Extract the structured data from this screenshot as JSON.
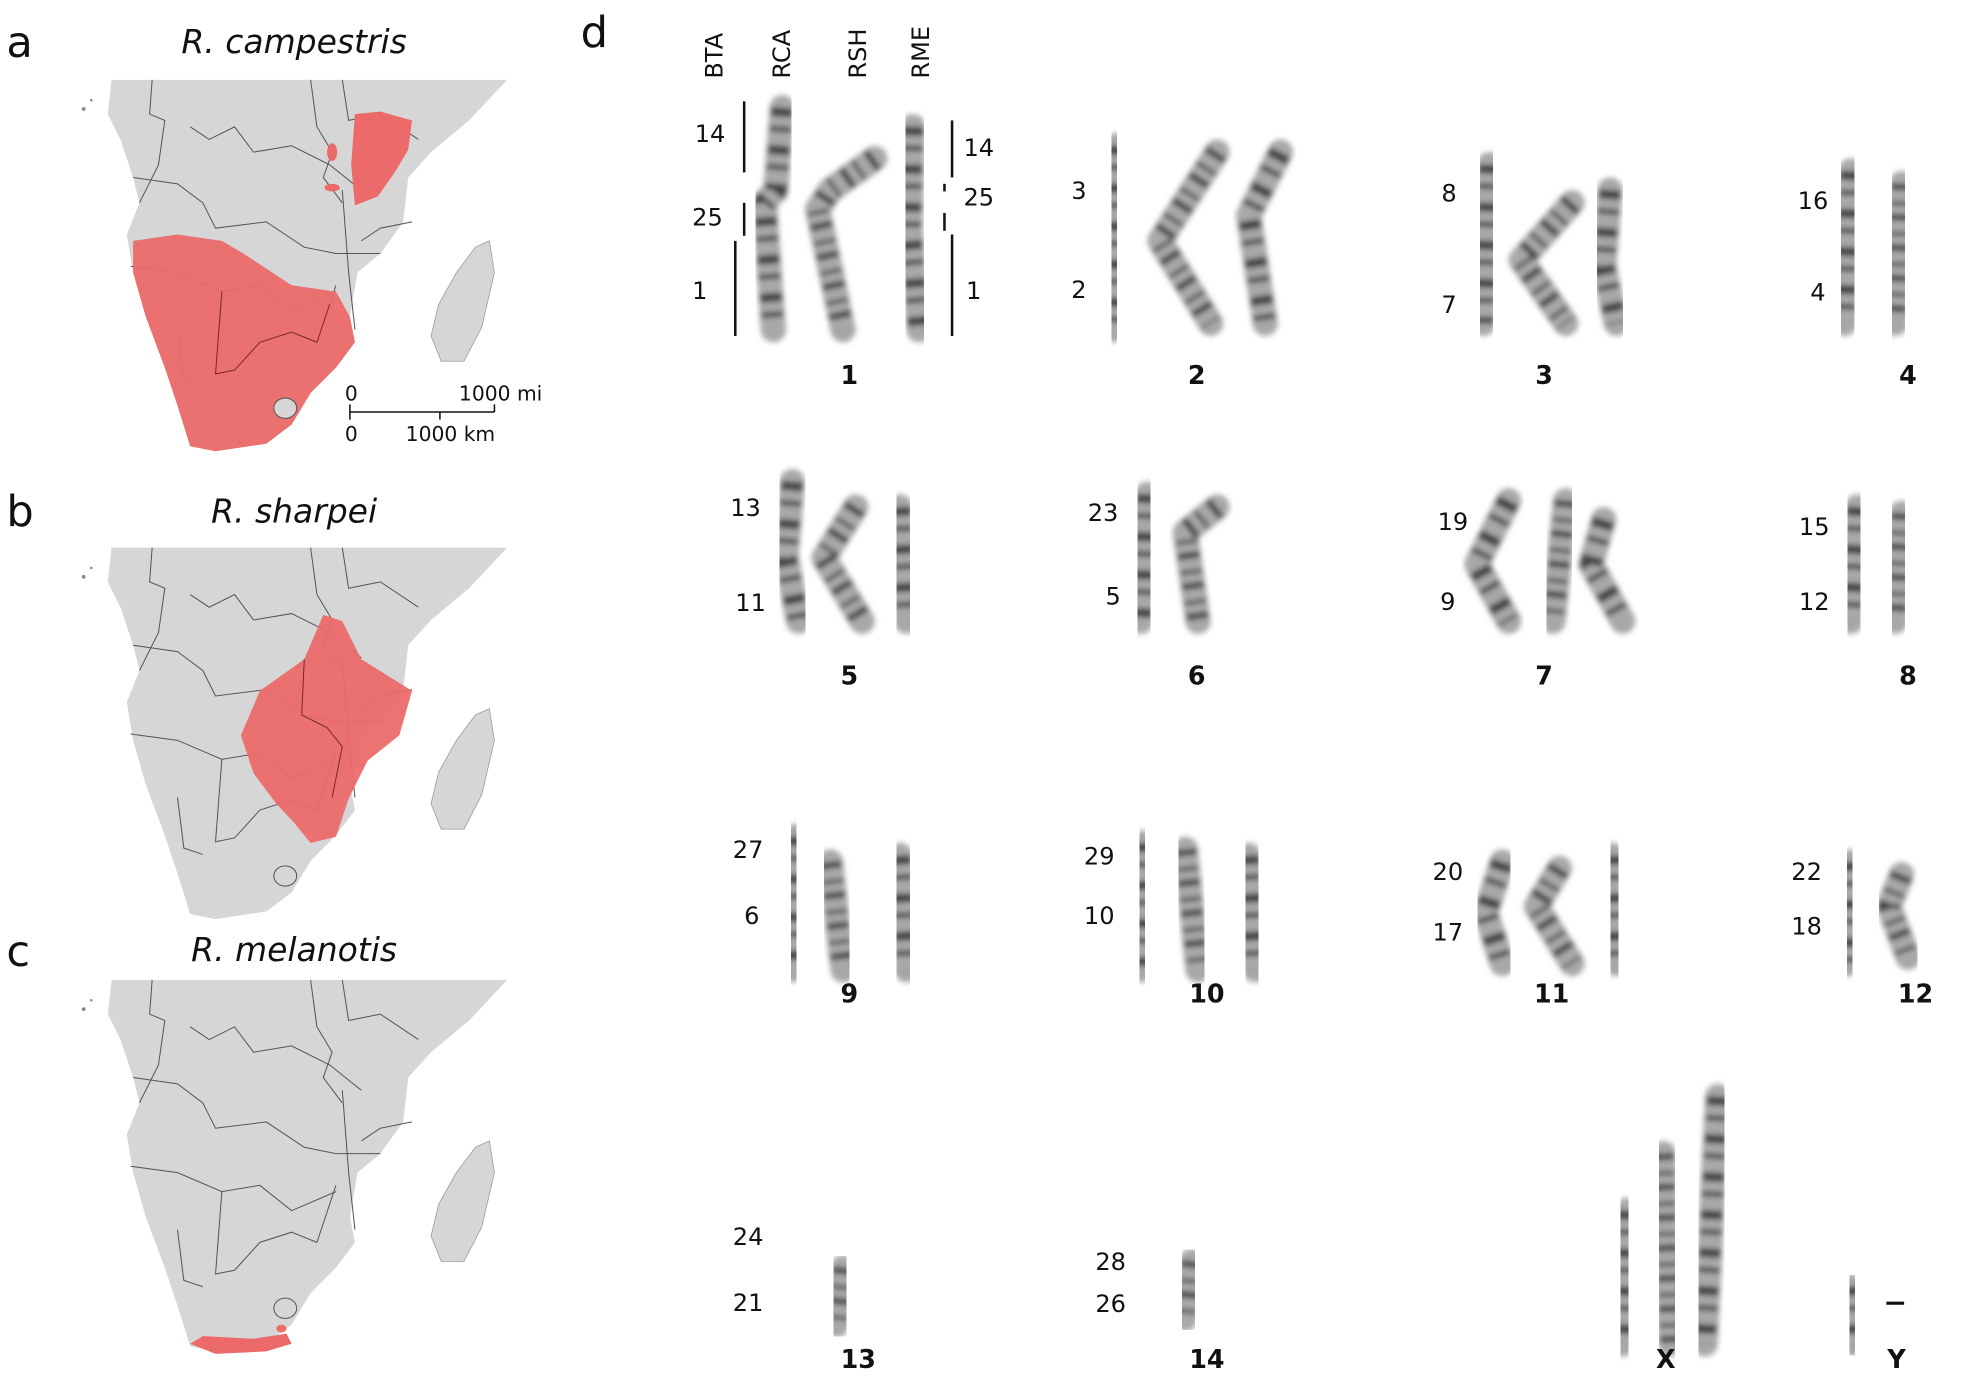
{
  "panels": {
    "a": {
      "letter": "a",
      "species": "R. campestris"
    },
    "b": {
      "letter": "b",
      "species": "R. sharpei"
    },
    "c": {
      "letter": "c",
      "species": "R. melanotis"
    },
    "d": {
      "letter": "d",
      "columns": [
        "BTA",
        "RCA",
        "RSH",
        "RME"
      ]
    }
  },
  "scale_bar": {
    "mi_zero": "0",
    "mi_label": "1000 mi",
    "km_zero": "0",
    "km_label": "1000 km"
  },
  "colors": {
    "land": "#d6d6d6",
    "range": "#ec6a6a",
    "border": "#555555",
    "chromosome": "#222222"
  },
  "karyotype": [
    {
      "chromosome": "1",
      "bta_left": [
        "14",
        "25",
        "1"
      ],
      "bta_right": [
        "14",
        "25",
        "1"
      ]
    },
    {
      "chromosome": "2",
      "bta_left": [
        "3",
        "2"
      ]
    },
    {
      "chromosome": "3",
      "bta_left": [
        "8",
        "7"
      ]
    },
    {
      "chromosome": "4",
      "bta_left": [
        "16",
        "4"
      ]
    },
    {
      "chromosome": "5",
      "bta_left": [
        "13",
        "11"
      ]
    },
    {
      "chromosome": "6",
      "bta_left": [
        "23",
        "5"
      ]
    },
    {
      "chromosome": "7",
      "bta_left": [
        "19",
        "9"
      ]
    },
    {
      "chromosome": "8",
      "bta_left": [
        "15",
        "12"
      ]
    },
    {
      "chromosome": "9",
      "bta_left": [
        "27",
        "6"
      ]
    },
    {
      "chromosome": "10",
      "bta_left": [
        "29",
        "10"
      ]
    },
    {
      "chromosome": "11",
      "bta_left": [
        "20",
        "17"
      ]
    },
    {
      "chromosome": "12",
      "bta_left": [
        "22",
        "18"
      ]
    },
    {
      "chromosome": "13",
      "bta_left": [
        "24",
        "21"
      ]
    },
    {
      "chromosome": "14",
      "bta_left": [
        "28",
        "26"
      ]
    },
    {
      "chromosome": "X",
      "bta_left": []
    },
    {
      "chromosome": "Y",
      "bta_left": []
    }
  ]
}
